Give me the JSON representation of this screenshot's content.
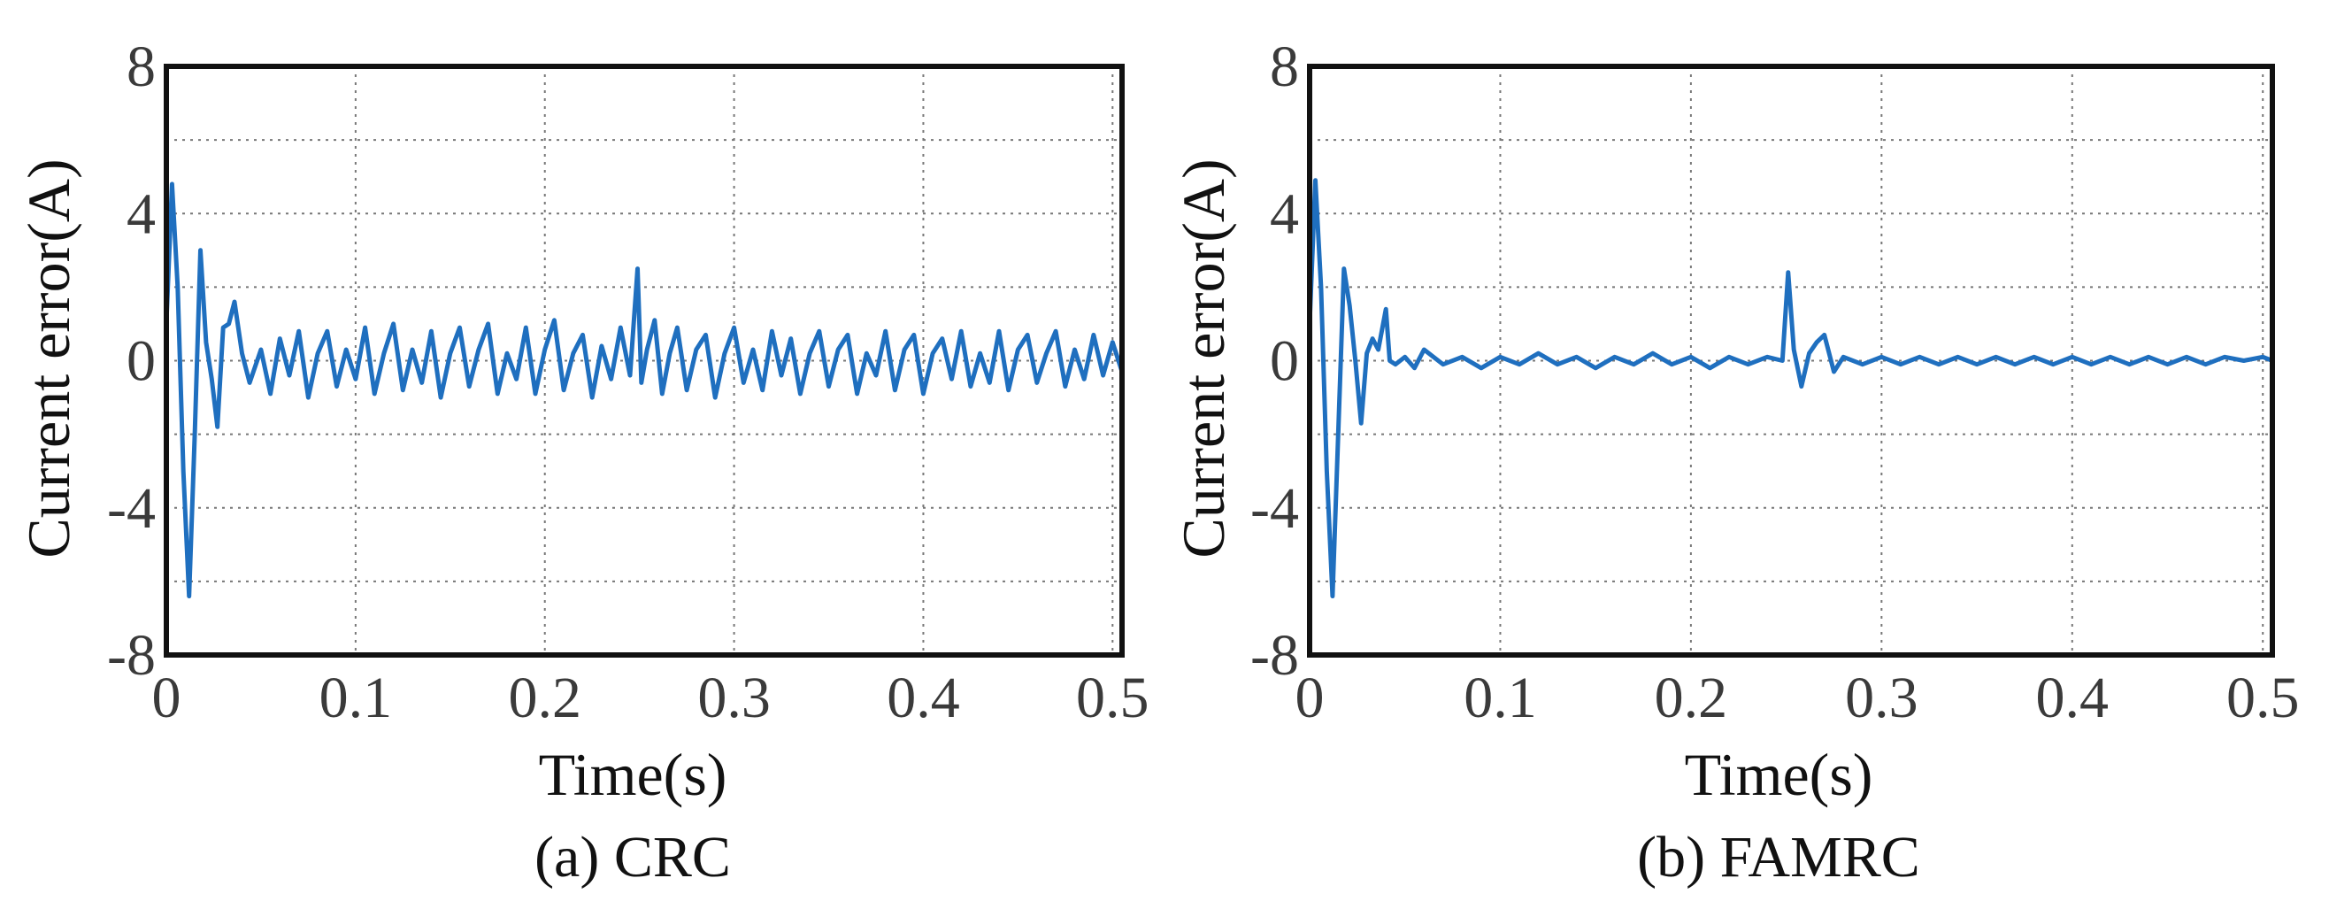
{
  "chart_data": [
    {
      "type": "line",
      "caption": "(a) CRC",
      "xlabel": "Time(s)",
      "ylabel": "Current error(A)",
      "xlim": [
        0,
        0.505
      ],
      "ylim": [
        -8,
        8
      ],
      "xticks": [
        0,
        0.1,
        0.2,
        0.3,
        0.4,
        0.5
      ],
      "xtick_labels": [
        "0",
        "0.1",
        "0.2",
        "0.3",
        "0.4",
        "0.5"
      ],
      "yticks": [
        -8,
        -4,
        0,
        4,
        8
      ],
      "ytick_labels": [
        "-8",
        "-4",
        "0",
        "4",
        "8"
      ],
      "grid": true,
      "series": [
        {
          "name": "Current error",
          "color": "#1f6fbf",
          "x": [
            0,
            0.003,
            0.006,
            0.009,
            0.012,
            0.015,
            0.018,
            0.021,
            0.024,
            0.027,
            0.03,
            0.033,
            0.036,
            0.04,
            0.044,
            0.05,
            0.055,
            0.06,
            0.065,
            0.07,
            0.075,
            0.08,
            0.085,
            0.09,
            0.095,
            0.1,
            0.105,
            0.11,
            0.115,
            0.12,
            0.125,
            0.13,
            0.135,
            0.14,
            0.145,
            0.15,
            0.155,
            0.16,
            0.165,
            0.17,
            0.175,
            0.18,
            0.185,
            0.19,
            0.195,
            0.2,
            0.205,
            0.21,
            0.215,
            0.22,
            0.225,
            0.23,
            0.235,
            0.24,
            0.245,
            0.249,
            0.251,
            0.254,
            0.258,
            0.262,
            0.266,
            0.27,
            0.275,
            0.28,
            0.285,
            0.29,
            0.295,
            0.3,
            0.305,
            0.31,
            0.315,
            0.32,
            0.325,
            0.33,
            0.335,
            0.34,
            0.345,
            0.35,
            0.355,
            0.36,
            0.365,
            0.37,
            0.375,
            0.38,
            0.385,
            0.39,
            0.395,
            0.4,
            0.405,
            0.41,
            0.415,
            0.42,
            0.425,
            0.43,
            0.435,
            0.44,
            0.445,
            0.45,
            0.455,
            0.46,
            0.465,
            0.47,
            0.475,
            0.48,
            0.485,
            0.49,
            0.495,
            0.5,
            0.505
          ],
          "y": [
            1.0,
            4.8,
            2.0,
            -3.0,
            -6.4,
            -2.0,
            3.0,
            0.5,
            -0.5,
            -1.8,
            0.9,
            1.0,
            1.6,
            0.2,
            -0.6,
            0.3,
            -0.9,
            0.6,
            -0.4,
            0.8,
            -1.0,
            0.2,
            0.8,
            -0.7,
            0.3,
            -0.5,
            0.9,
            -0.9,
            0.2,
            1.0,
            -0.8,
            0.3,
            -0.6,
            0.8,
            -1.0,
            0.2,
            0.9,
            -0.7,
            0.3,
            1.0,
            -0.9,
            0.2,
            -0.5,
            0.9,
            -0.9,
            0.3,
            1.1,
            -0.8,
            0.2,
            0.7,
            -1.0,
            0.4,
            -0.5,
            0.9,
            -0.4,
            2.5,
            -0.6,
            0.3,
            1.1,
            -0.9,
            0.2,
            0.9,
            -0.8,
            0.3,
            0.7,
            -1.0,
            0.2,
            0.9,
            -0.6,
            0.3,
            -0.8,
            0.8,
            -0.4,
            0.6,
            -0.9,
            0.2,
            0.8,
            -0.7,
            0.3,
            0.7,
            -0.9,
            0.2,
            -0.4,
            0.8,
            -0.8,
            0.3,
            0.7,
            -0.9,
            0.2,
            0.6,
            -0.5,
            0.8,
            -0.7,
            0.2,
            -0.6,
            0.8,
            -0.8,
            0.3,
            0.7,
            -0.6,
            0.2,
            0.8,
            -0.7,
            0.3,
            -0.5,
            0.7,
            -0.4,
            0.5,
            -0.3
          ]
        }
      ]
    },
    {
      "type": "line",
      "caption": "(b) FAMRC",
      "xlabel": "Time(s)",
      "ylabel": "Current error(A)",
      "xlim": [
        0,
        0.505
      ],
      "ylim": [
        -8,
        8
      ],
      "xticks": [
        0,
        0.1,
        0.2,
        0.3,
        0.4,
        0.5
      ],
      "xtick_labels": [
        "0",
        "0.1",
        "0.2",
        "0.3",
        "0.4",
        "0.5"
      ],
      "yticks": [
        -8,
        -4,
        0,
        4,
        8
      ],
      "ytick_labels": [
        "-8",
        "-4",
        "0",
        "4",
        "8"
      ],
      "grid": true,
      "series": [
        {
          "name": "Current error",
          "color": "#1f6fbf",
          "x": [
            0,
            0.003,
            0.006,
            0.009,
            0.012,
            0.015,
            0.018,
            0.021,
            0.024,
            0.027,
            0.03,
            0.033,
            0.036,
            0.04,
            0.042,
            0.045,
            0.05,
            0.055,
            0.06,
            0.07,
            0.08,
            0.09,
            0.1,
            0.11,
            0.12,
            0.13,
            0.14,
            0.15,
            0.16,
            0.17,
            0.18,
            0.19,
            0.2,
            0.21,
            0.22,
            0.23,
            0.24,
            0.248,
            0.251,
            0.254,
            0.258,
            0.262,
            0.266,
            0.27,
            0.275,
            0.28,
            0.29,
            0.3,
            0.31,
            0.32,
            0.33,
            0.34,
            0.35,
            0.36,
            0.37,
            0.38,
            0.39,
            0.4,
            0.41,
            0.42,
            0.43,
            0.44,
            0.45,
            0.46,
            0.47,
            0.48,
            0.49,
            0.5,
            0.505
          ],
          "y": [
            1.0,
            4.9,
            2.0,
            -3.0,
            -6.4,
            -2.0,
            2.5,
            1.5,
            0.0,
            -1.7,
            0.2,
            0.6,
            0.3,
            1.4,
            0.0,
            -0.1,
            0.1,
            -0.2,
            0.3,
            -0.1,
            0.1,
            -0.2,
            0.1,
            -0.1,
            0.2,
            -0.1,
            0.1,
            -0.2,
            0.1,
            -0.1,
            0.2,
            -0.1,
            0.1,
            -0.2,
            0.1,
            -0.1,
            0.1,
            0.0,
            2.4,
            0.3,
            -0.7,
            0.2,
            0.5,
            0.7,
            -0.3,
            0.1,
            -0.1,
            0.1,
            -0.1,
            0.1,
            -0.1,
            0.1,
            -0.1,
            0.1,
            -0.1,
            0.1,
            -0.1,
            0.1,
            -0.1,
            0.1,
            -0.1,
            0.1,
            -0.1,
            0.1,
            -0.1,
            0.1,
            0.0,
            0.1,
            0.0
          ]
        }
      ]
    }
  ]
}
